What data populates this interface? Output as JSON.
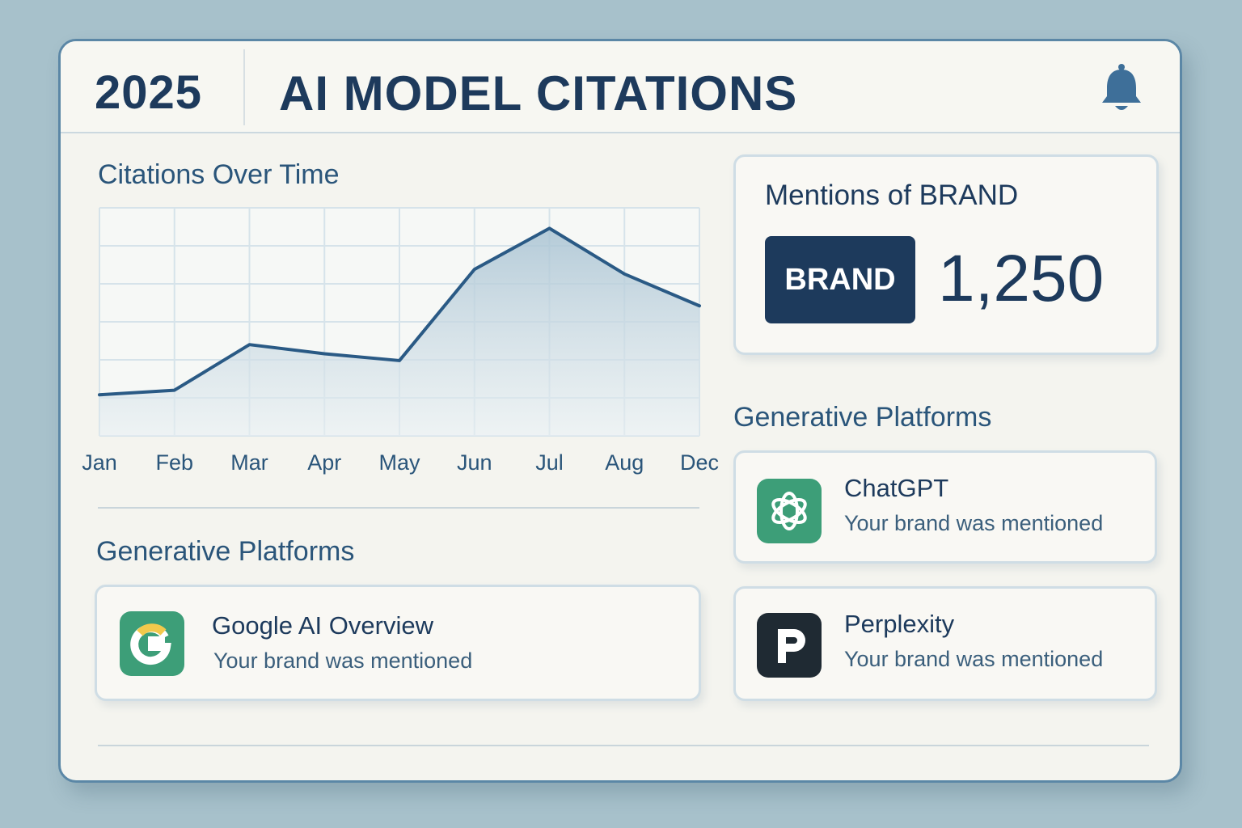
{
  "header": {
    "year": "2025",
    "title": "AI MODEL CITATIONS"
  },
  "chart_section": {
    "heading": "Citations Over Time"
  },
  "chart_data": {
    "type": "area",
    "categories": [
      "Jan",
      "Feb",
      "Mar",
      "Apr",
      "May",
      "Jun",
      "Jul",
      "Aug",
      "Dec"
    ],
    "values": [
      18,
      20,
      40,
      36,
      33,
      73,
      91,
      71,
      57
    ],
    "ylim": [
      0,
      100
    ],
    "grid": true,
    "colors": {
      "line": "#2a5a85",
      "fill_top": "#a9c3d3",
      "fill_bottom": "#e8eff2",
      "grid": "#d6e3ea"
    }
  },
  "left_platforms": {
    "heading": "Generative Platforms",
    "items": [
      {
        "name": "Google AI Overview",
        "status": "Your brand was mentioned",
        "icon": "google-g-icon",
        "color": "#3d9e78"
      }
    ]
  },
  "mentions": {
    "title": "Mentions of BRAND",
    "badge": "BRAND",
    "count": "1,250"
  },
  "right_platforms": {
    "heading": "Generative Platforms",
    "items": [
      {
        "name": "ChatGPT",
        "status": "Your brand was mentioned",
        "icon": "chatgpt-icon",
        "color": "#3d9e78"
      },
      {
        "name": "Perplexity",
        "status": "Your brand was mentioned",
        "icon": "perplexity-icon",
        "color": "#1f2a33"
      }
    ]
  },
  "colors": {
    "primary": "#1d3a5c",
    "accent": "#2a557a",
    "background": "#a7c1cb"
  }
}
